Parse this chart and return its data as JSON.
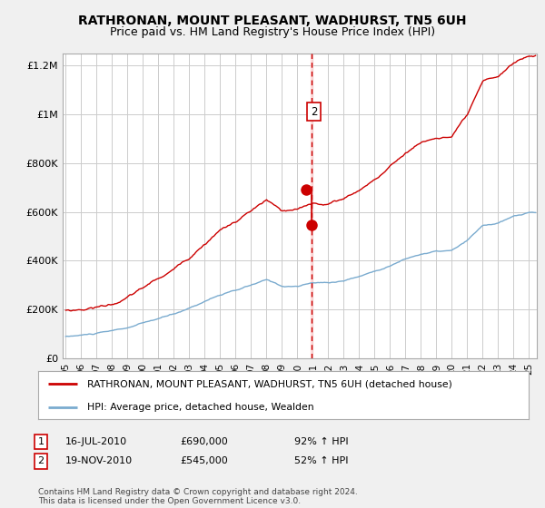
{
  "title": "RATHRONAN, MOUNT PLEASANT, WADHURST, TN5 6UH",
  "subtitle": "Price paid vs. HM Land Registry's House Price Index (HPI)",
  "legend_line1": "RATHRONAN, MOUNT PLEASANT, WADHURST, TN5 6UH (detached house)",
  "legend_line2": "HPI: Average price, detached house, Wealden",
  "annotation1_label": "1",
  "annotation1_date": "16-JUL-2010",
  "annotation1_price": "£690,000",
  "annotation1_hpi": "92% ↑ HPI",
  "annotation2_label": "2",
  "annotation2_date": "19-NOV-2010",
  "annotation2_price": "£545,000",
  "annotation2_hpi": "52% ↑ HPI",
  "footer": "Contains HM Land Registry data © Crown copyright and database right 2024.\nThis data is licensed under the Open Government Licence v3.0.",
  "ylim": [
    0,
    1250000
  ],
  "yticks": [
    0,
    200000,
    400000,
    600000,
    800000,
    1000000,
    1200000
  ],
  "ylabel_fmt": [
    "£0",
    "£200K",
    "£400K",
    "£600K",
    "£800K",
    "£1M",
    "£1.2M"
  ],
  "red_color": "#cc0000",
  "blue_color": "#7aabcf",
  "vline_x": 2010.92,
  "vline_highlight_color": "#ffcccc",
  "sale1_x": 2010.54,
  "sale1_y": 690000,
  "sale2_x": 2010.92,
  "sale2_y": 545000,
  "xmin": 1994.8,
  "xmax": 2025.5,
  "xtick_years": [
    1995,
    1996,
    1997,
    1998,
    1999,
    2000,
    2001,
    2002,
    2003,
    2004,
    2005,
    2006,
    2007,
    2008,
    2009,
    2010,
    2011,
    2012,
    2013,
    2014,
    2015,
    2016,
    2017,
    2018,
    2019,
    2020,
    2021,
    2022,
    2023,
    2024,
    2025
  ],
  "bg_color": "#f0f0f0",
  "plot_bg": "#ffffff",
  "grid_color": "#cccccc",
  "title_fontsize": 10,
  "subtitle_fontsize": 9
}
